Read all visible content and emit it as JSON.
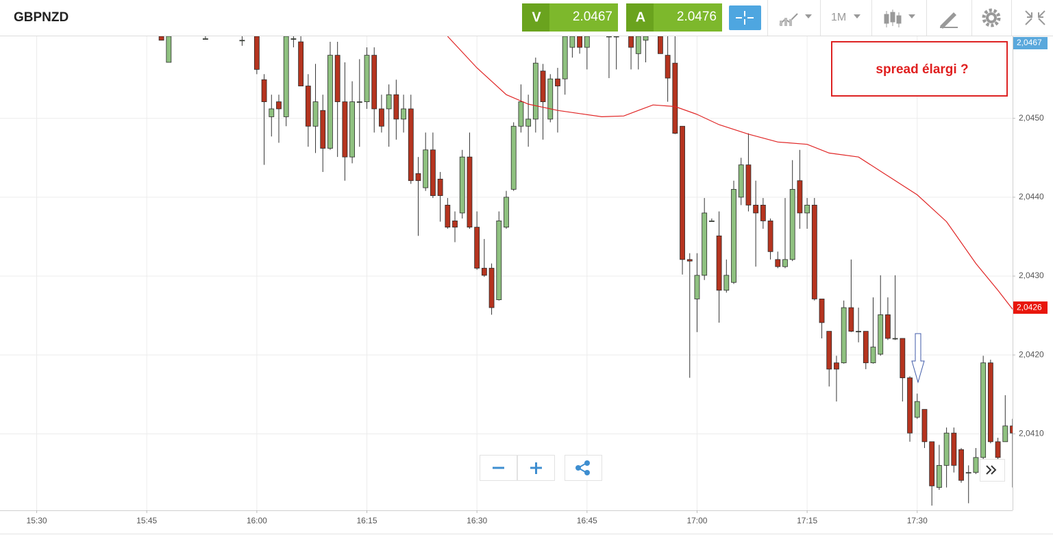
{
  "toolbar": {
    "sell_label": "V",
    "sell_price": 2.0467,
    "buy_label": "A",
    "buy_price": 2.0476,
    "timeframe": "1M"
  },
  "chart_data": {
    "type": "candlestick",
    "title": "GBPNZD",
    "annotation": "spread élargi ?",
    "up_color": "#8fc180",
    "down_color": "#b5341f",
    "grid": true,
    "xlim": [
      "15:25",
      "17:43"
    ],
    "xticks": [
      "15:30",
      "15:45",
      "16:00",
      "16:15",
      "16:30",
      "16:45",
      "17:00",
      "17:15",
      "17:30"
    ],
    "ylim": [
      2.04003,
      2.04604
    ],
    "yticks": [
      {
        "value": 2.041,
        "label": "2,0410"
      },
      {
        "value": 2.042,
        "label": "2,0420"
      },
      {
        "value": 2.043,
        "label": "2,0430"
      },
      {
        "value": 2.044,
        "label": "2,0440"
      },
      {
        "value": 2.045,
        "label": "2,0450"
      }
    ],
    "price_tags": [
      {
        "value": 2.0467,
        "label": "2,0467",
        "color": "#5aa8dc"
      },
      {
        "value": 2.0426,
        "label": "2,0426",
        "color": "#e8160c"
      }
    ],
    "x": [
      "15:47",
      "15:48",
      "15:53",
      "15:58",
      "16:00",
      "16:01",
      "16:02",
      "16:03",
      "16:04",
      "16:05",
      "16:06",
      "16:07",
      "16:08",
      "16:09",
      "16:10",
      "16:11",
      "16:12",
      "16:13",
      "16:14",
      "16:15",
      "16:16",
      "16:17",
      "16:18",
      "16:19",
      "16:20",
      "16:21",
      "16:22",
      "16:23",
      "16:24",
      "16:25",
      "16:26",
      "16:27",
      "16:28",
      "16:29",
      "16:30",
      "16:31",
      "16:32",
      "16:33",
      "16:34",
      "16:35",
      "16:36",
      "16:37",
      "16:38",
      "16:39",
      "16:40",
      "16:41",
      "16:42",
      "16:43",
      "16:44",
      "16:45",
      "16:48",
      "16:49",
      "16:51",
      "16:52",
      "16:53",
      "16:55",
      "16:56",
      "16:57",
      "16:58",
      "16:59",
      "17:00",
      "17:01",
      "17:02",
      "17:03",
      "17:04",
      "17:05",
      "17:06",
      "17:07",
      "17:08",
      "17:09",
      "17:10",
      "17:11",
      "17:12",
      "17:13",
      "17:14",
      "17:15",
      "17:16",
      "17:17",
      "17:18",
      "17:19",
      "17:20",
      "17:21",
      "17:22",
      "17:23",
      "17:24",
      "17:25",
      "17:26",
      "17:27",
      "17:28",
      "17:29",
      "17:30",
      "17:31",
      "17:32",
      "17:33",
      "17:34",
      "17:35",
      "17:36",
      "17:37",
      "17:38",
      "17:39",
      "17:40",
      "17:41",
      "17:42",
      "17:43"
    ],
    "open": [
      2.04604,
      2.04571,
      2.04601,
      2.04599,
      2.04604,
      2.04549,
      2.04502,
      2.04521,
      2.04502,
      2.04601,
      2.04597,
      2.04541,
      2.0449,
      2.0451,
      2.04462,
      2.0458,
      2.04521,
      2.04451,
      2.04521,
      2.04521,
      2.0458,
      2.04512,
      2.04512,
      2.0453,
      2.04499,
      2.04512,
      2.0443,
      2.04412,
      2.0446,
      2.04423,
      2.0439,
      2.0437,
      2.0438,
      2.04451,
      2.04362,
      2.0431,
      2.0431,
      2.0427,
      2.04362,
      2.0441,
      2.0449,
      2.0449,
      2.04499,
      2.0456,
      2.04499,
      2.0455,
      2.0455,
      2.0459,
      2.04604,
      2.0459,
      2.04604,
      2.04604,
      2.04604,
      2.04582,
      2.04599,
      2.04604,
      2.0458,
      2.0457,
      2.0449,
      2.04321,
      2.04271,
      2.04301,
      2.0437,
      2.04351,
      2.04282,
      2.04292,
      2.044,
      2.04441,
      2.0439,
      2.0439,
      2.0437,
      2.04321,
      2.04312,
      2.04321,
      2.04421,
      2.0438,
      2.0439,
      2.04271,
      2.0423,
      2.0419,
      2.0419,
      2.0426,
      2.0423,
      2.0423,
      2.0419,
      2.04201,
      2.04251,
      2.04221,
      2.04221,
      2.04171,
      2.04121,
      2.04131,
      2.0409,
      2.04032,
      2.0406,
      2.04101,
      2.0408,
      2.04051,
      2.04051,
      2.0407,
      2.0419,
      2.0409,
      2.0409,
      2.0411
    ],
    "high": [
      2.04604,
      2.04604,
      2.04604,
      2.04604,
      2.04604,
      2.04556,
      2.0453,
      2.0453,
      2.04604,
      2.04604,
      2.04604,
      2.04556,
      2.04569,
      2.0453,
      2.04597,
      2.04597,
      2.04571,
      2.04547,
      2.04575,
      2.0459,
      2.0459,
      2.0453,
      2.04543,
      2.04549,
      2.0453,
      2.0453,
      2.04451,
      2.04482,
      2.04482,
      2.04432,
      2.04399,
      2.04382,
      2.0446,
      2.04482,
      2.04382,
      2.04347,
      2.04316,
      2.04382,
      2.04408,
      2.04495,
      2.04543,
      2.0453,
      2.04577,
      2.04569,
      2.04556,
      2.04564,
      2.04604,
      2.04604,
      2.04604,
      2.04604,
      2.04604,
      2.04604,
      2.04604,
      2.04604,
      2.04604,
      2.04604,
      2.04604,
      2.04604,
      2.0449,
      2.04329,
      2.04329,
      2.04399,
      2.04373,
      2.04382,
      2.04321,
      2.04421,
      2.0445,
      2.04481,
      2.04421,
      2.04399,
      2.04373,
      2.04331,
      2.04399,
      2.04447,
      2.0446,
      2.04399,
      2.04399,
      2.04271,
      2.0423,
      2.04199,
      2.04269,
      2.04321,
      2.0426,
      2.0423,
      2.04273,
      2.04301,
      2.04273,
      2.04301,
      2.04221,
      2.04173,
      2.04151,
      2.04131,
      2.0409,
      2.04086,
      2.04108,
      2.04108,
      2.04082,
      2.0406,
      2.04082,
      2.04199,
      2.04194,
      2.04095,
      2.04149,
      2.04119
    ],
    "low": [
      2.04599,
      2.04571,
      2.04601,
      2.04592,
      2.04556,
      2.04441,
      2.04477,
      2.04469,
      2.0449,
      2.0459,
      2.04541,
      2.04464,
      2.04456,
      2.04432,
      2.0446,
      2.04451,
      2.04421,
      2.04443,
      2.04464,
      2.04512,
      2.04482,
      2.04482,
      2.04464,
      2.04473,
      2.04482,
      2.04417,
      2.04351,
      2.04408,
      2.04399,
      2.04369,
      2.0436,
      2.04343,
      2.04373,
      2.0436,
      2.04308,
      2.04299,
      2.04251,
      2.04269,
      2.0436,
      2.04408,
      2.04482,
      2.04464,
      2.04482,
      2.04473,
      2.04495,
      2.04482,
      2.0453,
      2.04577,
      2.04582,
      2.04562,
      2.04551,
      2.04562,
      2.04562,
      2.04562,
      2.04571,
      2.04582,
      2.04521,
      2.0448,
      2.04302,
      2.04171,
      2.04229,
      2.04295,
      2.04369,
      2.04241,
      2.04279,
      2.0429,
      2.0439,
      2.04382,
      2.04312,
      2.0436,
      2.04321,
      2.0431,
      2.0431,
      2.04319,
      2.0436,
      2.0436,
      2.04269,
      2.04221,
      2.0416,
      2.04141,
      2.04189,
      2.04229,
      2.04216,
      2.04182,
      2.04189,
      2.04199,
      2.04219,
      2.04219,
      2.04141,
      2.0409,
      2.04119,
      2.04082,
      2.04009,
      2.04029,
      2.04032,
      2.04051,
      2.04038,
      2.04012,
      2.04049,
      2.04068,
      2.04088,
      2.04068,
      2.0409,
      2.04032
    ],
    "close": [
      2.04599,
      2.04604,
      2.04601,
      2.04599,
      2.04562,
      2.04521,
      2.04512,
      2.04512,
      2.04604,
      2.04601,
      2.04541,
      2.0449,
      2.04521,
      2.04462,
      2.0458,
      2.04521,
      2.04451,
      2.04521,
      2.04521,
      2.0458,
      2.04512,
      2.0449,
      2.0453,
      2.04499,
      2.04512,
      2.04421,
      2.04421,
      2.0446,
      2.04402,
      2.04402,
      2.04362,
      2.04362,
      2.04451,
      2.04362,
      2.0431,
      2.04301,
      2.0426,
      2.0437,
      2.044,
      2.0449,
      2.04521,
      2.04499,
      2.0457,
      2.04521,
      2.0455,
      2.04541,
      2.04604,
      2.04604,
      2.0459,
      2.04604,
      2.04604,
      2.04604,
      2.0459,
      2.04604,
      2.04604,
      2.04582,
      2.04551,
      2.04481,
      2.04321,
      2.04319,
      2.04301,
      2.0438,
      2.0437,
      2.04282,
      2.04301,
      2.0441,
      2.04441,
      2.0439,
      2.0438,
      2.0437,
      2.04331,
      2.04312,
      2.04321,
      2.0441,
      2.0438,
      2.0439,
      2.04271,
      2.04241,
      2.04182,
      2.04182,
      2.0426,
      2.0423,
      2.0423,
      2.0419,
      2.0421,
      2.04251,
      2.04221,
      2.04221,
      2.04171,
      2.04101,
      2.04141,
      2.0409,
      2.04034,
      2.0406,
      2.04101,
      2.0406,
      2.04041,
      2.04051,
      2.0407,
      2.0419,
      2.0409,
      2.0407,
      2.0411,
      2.04101
    ],
    "moving_average": {
      "color": "#e02424",
      "x": [
        "16:26",
        "16:30",
        "16:34",
        "16:37",
        "16:41",
        "16:44",
        "16:47",
        "16:50",
        "16:52",
        "16:54",
        "16:57",
        "17:00",
        "17:03",
        "17:07",
        "17:11",
        "17:15",
        "17:18",
        "17:22",
        "17:26",
        "17:30",
        "17:34",
        "17:38",
        "17:41",
        "17:43"
      ],
      "values": [
        2.04604,
        2.04564,
        2.0453,
        2.04518,
        2.0451,
        2.04506,
        2.04502,
        2.04503,
        2.0451,
        2.04517,
        2.04515,
        2.04505,
        2.04492,
        2.0448,
        2.0447,
        2.04467,
        2.04456,
        2.04451,
        2.04427,
        2.04403,
        2.04369,
        2.04316,
        2.04282,
        2.04258
      ]
    }
  }
}
